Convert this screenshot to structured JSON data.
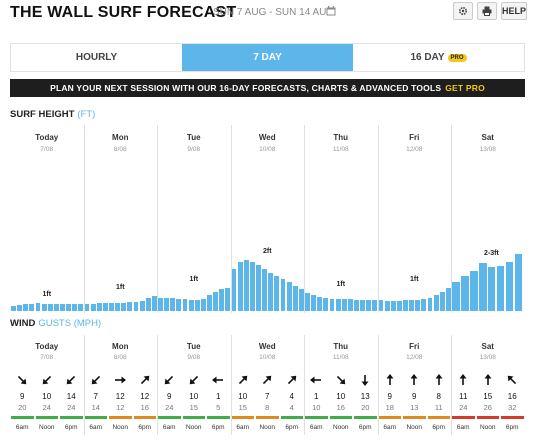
{
  "header": {
    "title": "THE WALL SURF FORECAST",
    "date_range": "SUN 7 AUG - SUN 14 AUG",
    "settings_icon": "gear-icon",
    "print_icon": "print-icon",
    "help_label": "HELP"
  },
  "tabs": [
    {
      "label": "HOURLY",
      "active": false
    },
    {
      "label": "7 DAY",
      "active": true
    },
    {
      "label": "16 DAY",
      "active": false,
      "badge": "PRO"
    }
  ],
  "banner": {
    "text": "PLAN YOUR NEXT SESSION WITH OUR 16-DAY FORECASTS, CHARTS & ADVANCED TOOLS",
    "cta": "GET PRO"
  },
  "surf": {
    "title": "SURF HEIGHT",
    "unit": "(FT)",
    "days": [
      {
        "name": "Today",
        "date": "7/08",
        "label": "1ft",
        "bars": [
          0.2,
          0.25,
          0.28,
          0.28,
          0.3,
          0.28,
          0.27,
          0.26,
          0.28,
          0.27,
          0.26,
          0.28
        ]
      },
      {
        "name": "Mon",
        "date": "8/08",
        "label": "1ft",
        "bars": [
          0.27,
          0.28,
          0.3,
          0.3,
          0.3,
          0.32,
          0.32,
          0.33,
          0.36,
          0.4,
          0.5,
          0.56
        ]
      },
      {
        "name": "Tue",
        "date": "9/08",
        "label": "1ft",
        "bars": [
          0.5,
          0.5,
          0.5,
          0.48,
          0.45,
          0.43,
          0.43,
          0.45,
          0.6,
          0.72,
          0.85,
          0.9
        ]
      },
      {
        "name": "Wed",
        "date": "10/08",
        "label": "2ft",
        "bars": [
          1.6,
          1.9,
          1.95,
          1.9,
          1.78,
          1.6,
          1.45,
          1.35,
          1.25,
          1.1,
          0.95,
          0.85
        ]
      },
      {
        "name": "Thu",
        "date": "11/08",
        "label": "1ft",
        "bars": [
          0.7,
          0.6,
          0.55,
          0.5,
          0.48,
          0.46,
          0.45,
          0.45,
          0.44,
          0.43,
          0.42,
          0.42
        ]
      },
      {
        "name": "Fri",
        "date": "12/08",
        "label": "1ft",
        "bars": [
          0.42,
          0.4,
          0.4,
          0.4,
          0.42,
          0.43,
          0.44,
          0.46,
          0.5,
          0.6,
          0.75,
          0.9
        ]
      },
      {
        "name": "Sat",
        "date": "13/08",
        "label": "2-3ft",
        "bars": [
          1.1,
          1.35,
          1.55,
          1.85,
          1.7,
          1.75,
          1.9,
          2.2
        ]
      }
    ]
  },
  "wind": {
    "title": "WIND",
    "sub": "GUSTS (MPH)",
    "days": [
      {
        "name": "Today",
        "date": "7/08",
        "arrows": [
          -45,
          45,
          45
        ],
        "speeds": [
          "9",
          "10",
          "14"
        ],
        "gusts": [
          "20",
          "24",
          "24"
        ],
        "colors": [
          "#3fae49",
          "#3fae49",
          "#3fae49"
        ],
        "times": [
          "6am",
          "Noon",
          "6pm"
        ]
      },
      {
        "name": "Mon",
        "date": "8/08",
        "arrows": [
          45,
          -90,
          -135
        ],
        "speeds": [
          "7",
          "12",
          "12"
        ],
        "gusts": [
          "14",
          "12",
          "16"
        ],
        "colors": [
          "#3fae49",
          "#e08a1e",
          "#e08a1e"
        ],
        "times": [
          "6am",
          "Noon",
          "6pm"
        ]
      },
      {
        "name": "Tue",
        "date": "9/08",
        "arrows": [
          45,
          45,
          90
        ],
        "speeds": [
          "9",
          "10",
          "1"
        ],
        "gusts": [
          "24",
          "15",
          "5"
        ],
        "colors": [
          "#3fae49",
          "#3fae49",
          "#3fae49"
        ],
        "times": [
          "6am",
          "Noon",
          "6pm"
        ]
      },
      {
        "name": "Wed",
        "date": "10/08",
        "arrows": [
          -135,
          -135,
          -135
        ],
        "speeds": [
          "10",
          "7",
          "4"
        ],
        "gusts": [
          "15",
          "8",
          "4"
        ],
        "colors": [
          "#e08a1e",
          "#e08a1e",
          "#3fae49"
        ],
        "times": [
          "6am",
          "Noon",
          "6pm"
        ]
      },
      {
        "name": "Thu",
        "date": "11/08",
        "arrows": [
          90,
          -45,
          0
        ],
        "speeds": [
          "1",
          "10",
          "13"
        ],
        "gusts": [
          "10",
          "16",
          "20"
        ],
        "colors": [
          "#3fae49",
          "#3fae49",
          "#3fae49"
        ],
        "times": [
          "6am",
          "Noon",
          "6pm"
        ]
      },
      {
        "name": "Fri",
        "date": "12/08",
        "arrows": [
          180,
          180,
          180
        ],
        "speeds": [
          "9",
          "9",
          "8"
        ],
        "gusts": [
          "18",
          "13",
          "11"
        ],
        "colors": [
          "#e08a1e",
          "#e08a1e",
          "#e08a1e"
        ],
        "times": [
          "6am",
          "Noon",
          "6pm"
        ]
      },
      {
        "name": "Sat",
        "date": "13/08",
        "arrows": [
          180,
          180,
          135
        ],
        "speeds": [
          "11",
          "15",
          "16"
        ],
        "gusts": [
          "24",
          "26",
          "32"
        ],
        "colors": [
          "#d33b2c",
          "#d33b2c",
          "#d33b2c"
        ],
        "times": [
          "6am",
          "Noon",
          "6pm"
        ]
      }
    ]
  }
}
